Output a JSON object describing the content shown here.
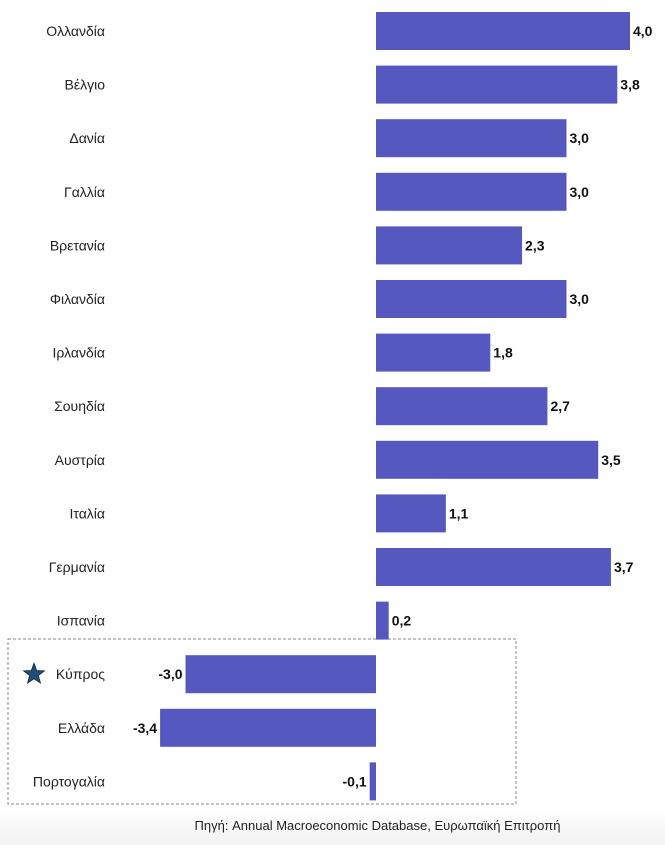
{
  "chart_data": {
    "type": "bar",
    "orientation": "horizontal",
    "categories": [
      "Ολλανδία",
      "Βέλγιο",
      "Δανία",
      "Γαλλία",
      "Βρετανία",
      "Φιλανδία",
      "Ιρλανδία",
      "Σουηδία",
      "Αυστρία",
      "Ιταλία",
      "Γερμανία",
      "Ισπανία",
      "Κύπρος",
      "Ελλάδα",
      "Πορτογαλία"
    ],
    "values": [
      4.0,
      3.8,
      3.0,
      3.0,
      2.3,
      3.0,
      1.8,
      2.7,
      3.5,
      1.1,
      3.7,
      0.2,
      -3.0,
      -3.4,
      -0.1
    ],
    "value_labels": [
      "4,0",
      "3,8",
      "3,0",
      "3,0",
      "2,3",
      "3,0",
      "1,8",
      "2,7",
      "3,5",
      "1,1",
      "3,7",
      "0,2",
      "-3,0",
      "-3,4",
      "-0,1"
    ],
    "highlighted_categories": [
      "Κύπρος",
      "Ελλάδα",
      "Πορτογαλία"
    ],
    "marked_category": "Κύπρος",
    "xlim": [
      -4.0,
      4.0
    ],
    "grid": false,
    "bar_color": "#5558be"
  },
  "marker_icon": "star-icon",
  "marker_color": "#1f4d73",
  "source": "Πηγή: Annual Macroeconomic Database, Ευρωπαϊκή Επιτροπή"
}
